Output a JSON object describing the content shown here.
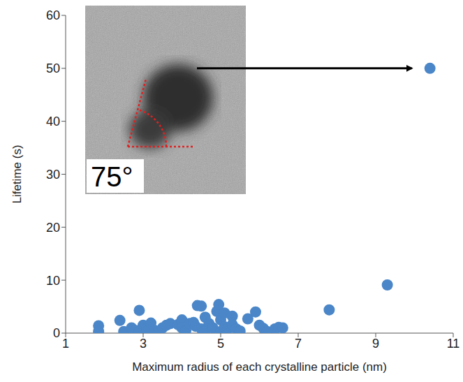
{
  "chart_data": {
    "type": "scatter",
    "x_label": "Maximum radius of each crystalline particle (nm)",
    "y_label": "Lifetime (s)",
    "x": [
      1.85,
      1.85,
      2.4,
      2.5,
      2.7,
      2.8,
      2.9,
      2.9,
      3.0,
      3.1,
      3.2,
      3.3,
      3.4,
      3.5,
      3.6,
      3.7,
      3.9,
      4.0,
      4.0,
      4.1,
      4.2,
      4.3,
      4.35,
      4.4,
      4.5,
      4.5,
      4.6,
      4.6,
      4.7,
      4.8,
      4.9,
      4.95,
      5.0,
      5.0,
      5.1,
      5.1,
      5.2,
      5.3,
      5.3,
      5.4,
      5.5,
      5.7,
      5.9,
      6.0,
      6.1,
      6.2,
      6.4,
      6.5,
      6.6,
      7.8,
      9.3,
      10.4
    ],
    "values": [
      1.4,
      0.3,
      2.4,
      0.3,
      1.0,
      0.5,
      4.3,
      0.3,
      1.5,
      0.8,
      1.9,
      0.5,
      0.3,
      1.0,
      1.5,
      1.8,
      1.6,
      2.5,
      1.0,
      0.5,
      1.8,
      2.0,
      1.3,
      5.2,
      5.1,
      0.8,
      3.0,
      0.4,
      1.8,
      1.0,
      4.1,
      5.4,
      2.5,
      0.3,
      3.8,
      1.2,
      0.9,
      3.2,
      1.6,
      0.8,
      0.4,
      2.7,
      4.0,
      1.5,
      0.9,
      0.3,
      0.8,
      1.1,
      1.0,
      4.4,
      9.1,
      50
    ],
    "color": "#4a86c8",
    "marker": "circle",
    "xlim": [
      1,
      11
    ],
    "xticks": [
      1,
      3,
      5,
      7,
      9,
      11
    ],
    "ylim": [
      0,
      60
    ],
    "yticks": [
      0,
      10,
      20,
      30,
      40,
      50,
      60
    ],
    "grid": false,
    "annotations": [
      {
        "text": "75°"
      }
    ]
  }
}
